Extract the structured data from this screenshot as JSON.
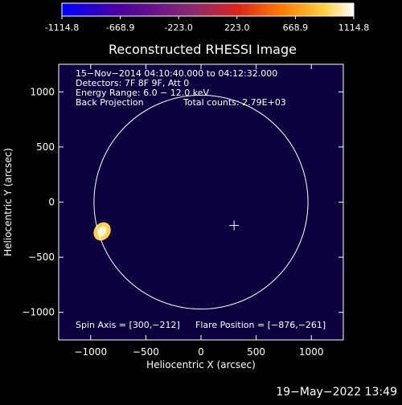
{
  "colorbar": {
    "ticks": [
      "-1114.8",
      "-668.9",
      "-223.0",
      "223.0",
      "668.9",
      "1114.8"
    ],
    "min": -1114.8,
    "max": 1114.8
  },
  "chart_data": {
    "type": "heatmap",
    "title": "Reconstructed RHESSI Image",
    "xlabel": "Heliocentric X (arcsec)",
    "ylabel": "Heliocentric Y (arcsec)",
    "xlim": [
      -1290,
      1290
    ],
    "ylim": [
      -1250,
      1250
    ],
    "x_ticks": [
      -1000,
      -500,
      0,
      500,
      1000
    ],
    "y_ticks": [
      1000,
      500,
      0,
      -500,
      -1000
    ],
    "x_tick_labels": [
      "−1000",
      "−500",
      "0",
      "500",
      "1000"
    ],
    "y_tick_labels": [
      "1000",
      "500",
      "0",
      "−500",
      "−1000"
    ],
    "colormap": [
      "#0000ff",
      "#4a009e",
      "#8d2a6e",
      "#d8241c",
      "#ff7a00",
      "#ffd040",
      "#ffffff"
    ],
    "solar_limb_radius_arcsec": 970,
    "solar_limb_center": [
      0,
      0
    ],
    "spin_axis": [
      300,
      -212
    ],
    "flare_position": [
      -876,
      -261
    ],
    "annotations": {
      "time_range": "15−Nov−2014 04:10:40.000 to 04:12:32.000",
      "detectors": "Detectors: 7F 8F 9F, Att 0",
      "energy_range": "Energy Range: 6.0 − 12.0 keV",
      "method": "Back Projection",
      "total_counts": "Total counts: 2.79E+03",
      "spin_axis_label": "Spin Axis = [300,−212]",
      "flare_position_label": "Flare Position = [−876,−261]"
    }
  },
  "footer": {
    "timestamp": "19−May−2022 13:49"
  }
}
